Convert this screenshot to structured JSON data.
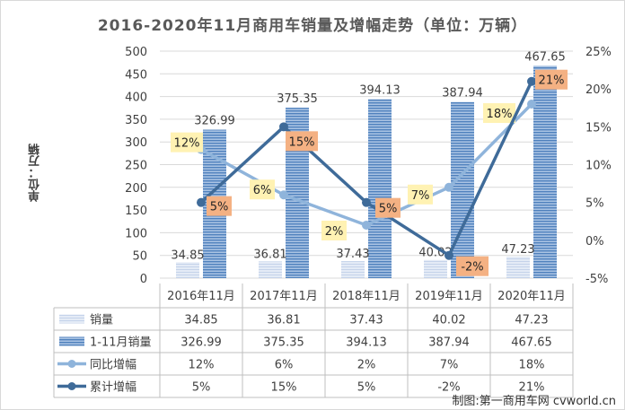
{
  "title": "2016-2020年11月商用车销量及增幅走势（单位：万辆）",
  "ylabel": "单位：万辆",
  "credit": "制图:第一商用车网 cvworld.cn",
  "chart_data": {
    "type": "bar",
    "categories": [
      "2016年11月",
      "2017年11月",
      "2018年11月",
      "2019年11月",
      "2020年11月"
    ],
    "series": [
      {
        "name": "销量",
        "kind": "bar",
        "axis": "left",
        "values": [
          34.85,
          36.81,
          37.43,
          40.02,
          47.23
        ],
        "labels": [
          "34.85",
          "36.81",
          "37.43",
          "40.02",
          "47.23"
        ],
        "table": [
          "34.85",
          "36.81",
          "37.43",
          "40.02",
          "47.23"
        ]
      },
      {
        "name": "1-11月销量",
        "kind": "bar",
        "axis": "left",
        "values": [
          326.99,
          375.35,
          394.13,
          387.94,
          467.65
        ],
        "labels": [
          "326.99",
          "375.35",
          "394.13",
          "387.94",
          "467.65"
        ],
        "table": [
          "326.99",
          "375.35",
          "394.13",
          "387.94",
          "467.65"
        ]
      },
      {
        "name": "同比增幅",
        "kind": "line",
        "axis": "right",
        "values": [
          12,
          6,
          2,
          7,
          18
        ],
        "labels": [
          "12%",
          "6%",
          "2%",
          "7%",
          "18%"
        ],
        "table": [
          "12%",
          "6%",
          "2%",
          "7%",
          "18%"
        ]
      },
      {
        "name": "累计增幅",
        "kind": "line",
        "axis": "right",
        "values": [
          5,
          15,
          5,
          -2,
          21
        ],
        "labels": [
          "5%",
          "15%",
          "5%",
          "-2%",
          "21%"
        ],
        "table": [
          "5%",
          "15%",
          "5%",
          "-2%",
          "21%"
        ]
      }
    ],
    "left_axis": {
      "min": 0,
      "max": 500,
      "ticks": [
        "0",
        "50",
        "100",
        "150",
        "200",
        "250",
        "300",
        "350",
        "400",
        "450",
        "500"
      ]
    },
    "right_axis": {
      "min": -5,
      "max": 25,
      "ticks": [
        "-5%",
        "0%",
        "5%",
        "10%",
        "15%",
        "20%",
        "25%"
      ]
    },
    "colors": {
      "sales": "#c5d3ea",
      "cumulative_sales": "#4f81bd",
      "yoy": "#8fb4db",
      "cumulative_growth": "#3f6b99",
      "label_yellow": "#fff2b3",
      "label_orange": "#f4b183"
    },
    "grid": true,
    "legend": "data-table"
  }
}
